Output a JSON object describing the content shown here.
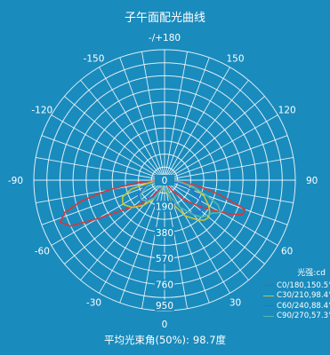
{
  "chart_data": {
    "type": "polar-line",
    "title": "子午面配光曲线",
    "radial_unit_label": "光强:cd",
    "radial_ticks": [
      0,
      190,
      380,
      570,
      760,
      950
    ],
    "radial_max": 950,
    "angle_ticks": [
      {
        "angle": 0,
        "label": "0"
      },
      {
        "angle": 30,
        "label": "30"
      },
      {
        "angle": -30,
        "label": "-30"
      },
      {
        "angle": 60,
        "label": "60"
      },
      {
        "angle": -60,
        "label": "-60"
      },
      {
        "angle": 90,
        "label": "90"
      },
      {
        "angle": -90,
        "label": "-90"
      },
      {
        "angle": 120,
        "label": "120"
      },
      {
        "angle": -120,
        "label": "-120"
      },
      {
        "angle": 150,
        "label": "150"
      },
      {
        "angle": -150,
        "label": "-150"
      },
      {
        "angle": 180,
        "label": "-/+180"
      }
    ],
    "grid_angle_step": 10,
    "series": [
      {
        "name": "C0/180,150.5°",
        "color": "#d8383a",
        "points": [
          [
            -90,
            0
          ],
          [
            -85,
            190
          ],
          [
            -80,
            420
          ],
          [
            -76,
            620
          ],
          [
            -72,
            760
          ],
          [
            -68,
            820
          ],
          [
            -64,
            760
          ],
          [
            -60,
            560
          ],
          [
            -55,
            390
          ],
          [
            -45,
            250
          ],
          [
            -35,
            140
          ],
          [
            -20,
            50
          ],
          [
            0,
            0
          ],
          [
            20,
            20
          ],
          [
            35,
            90
          ],
          [
            45,
            200
          ],
          [
            52,
            300
          ],
          [
            58,
            410
          ],
          [
            62,
            520
          ],
          [
            66,
            620
          ],
          [
            70,
            620
          ],
          [
            75,
            420
          ],
          [
            80,
            260
          ],
          [
            85,
            100
          ],
          [
            90,
            0
          ]
        ]
      },
      {
        "name": "C30/210,98.4°",
        "color": "#c8c53a",
        "points": [
          [
            -90,
            0
          ],
          [
            -82,
            100
          ],
          [
            -75,
            250
          ],
          [
            -68,
            330
          ],
          [
            -60,
            350
          ],
          [
            -50,
            310
          ],
          [
            -40,
            240
          ],
          [
            -30,
            160
          ],
          [
            -15,
            60
          ],
          [
            0,
            0
          ],
          [
            10,
            80
          ],
          [
            20,
            190
          ],
          [
            30,
            300
          ],
          [
            40,
            380
          ],
          [
            45,
            410
          ],
          [
            50,
            420
          ],
          [
            55,
            400
          ],
          [
            60,
            370
          ],
          [
            68,
            310
          ],
          [
            75,
            230
          ],
          [
            82,
            130
          ],
          [
            90,
            0
          ]
        ]
      },
      {
        "name": "C60/240,88.4°",
        "color": "#2f6fd6",
        "points": [
          [
            -90,
            0
          ],
          [
            -80,
            70
          ],
          [
            -70,
            160
          ],
          [
            -60,
            220
          ],
          [
            -50,
            230
          ],
          [
            -40,
            190
          ],
          [
            -30,
            130
          ],
          [
            -20,
            60
          ],
          [
            0,
            0
          ],
          [
            10,
            60
          ],
          [
            20,
            150
          ],
          [
            30,
            230
          ],
          [
            38,
            300
          ],
          [
            45,
            345
          ],
          [
            52,
            350
          ],
          [
            60,
            300
          ],
          [
            70,
            220
          ],
          [
            80,
            110
          ],
          [
            90,
            0
          ]
        ]
      },
      {
        "name": "C90/270,57.3°",
        "color": "#55b6b0",
        "points": [
          [
            -90,
            0
          ],
          [
            -80,
            60
          ],
          [
            -70,
            140
          ],
          [
            -60,
            200
          ],
          [
            -50,
            220
          ],
          [
            -40,
            200
          ],
          [
            -30,
            150
          ],
          [
            -20,
            70
          ],
          [
            0,
            0
          ],
          [
            10,
            50
          ],
          [
            20,
            130
          ],
          [
            30,
            230
          ],
          [
            40,
            330
          ],
          [
            45,
            380
          ],
          [
            50,
            400
          ],
          [
            55,
            420
          ],
          [
            60,
            470
          ],
          [
            65,
            430
          ],
          [
            70,
            330
          ],
          [
            78,
            200
          ],
          [
            85,
            90
          ],
          [
            90,
            0
          ]
        ]
      }
    ]
  },
  "footer": {
    "label": "平均光束角(50%):",
    "value": "98.7度"
  }
}
